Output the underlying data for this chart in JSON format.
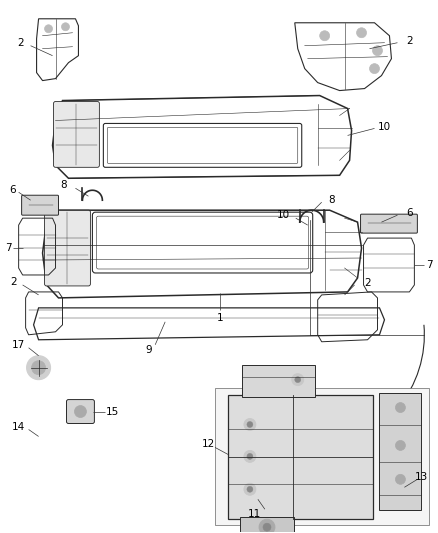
{
  "background_color": "#ffffff",
  "line_color": "#2a2a2a",
  "figsize": [
    4.38,
    5.33
  ],
  "dpi": 100,
  "label_fontsize": 7.5,
  "parts": {
    "bumper1_label": "1",
    "bumper2_label": "2",
    "label_6": "6",
    "label_7": "7",
    "label_8": "8",
    "label_9": "9",
    "label_10": "10",
    "label_11": "11",
    "label_12": "12",
    "label_13": "13",
    "label_14": "14",
    "label_15": "15",
    "label_17": "17"
  }
}
